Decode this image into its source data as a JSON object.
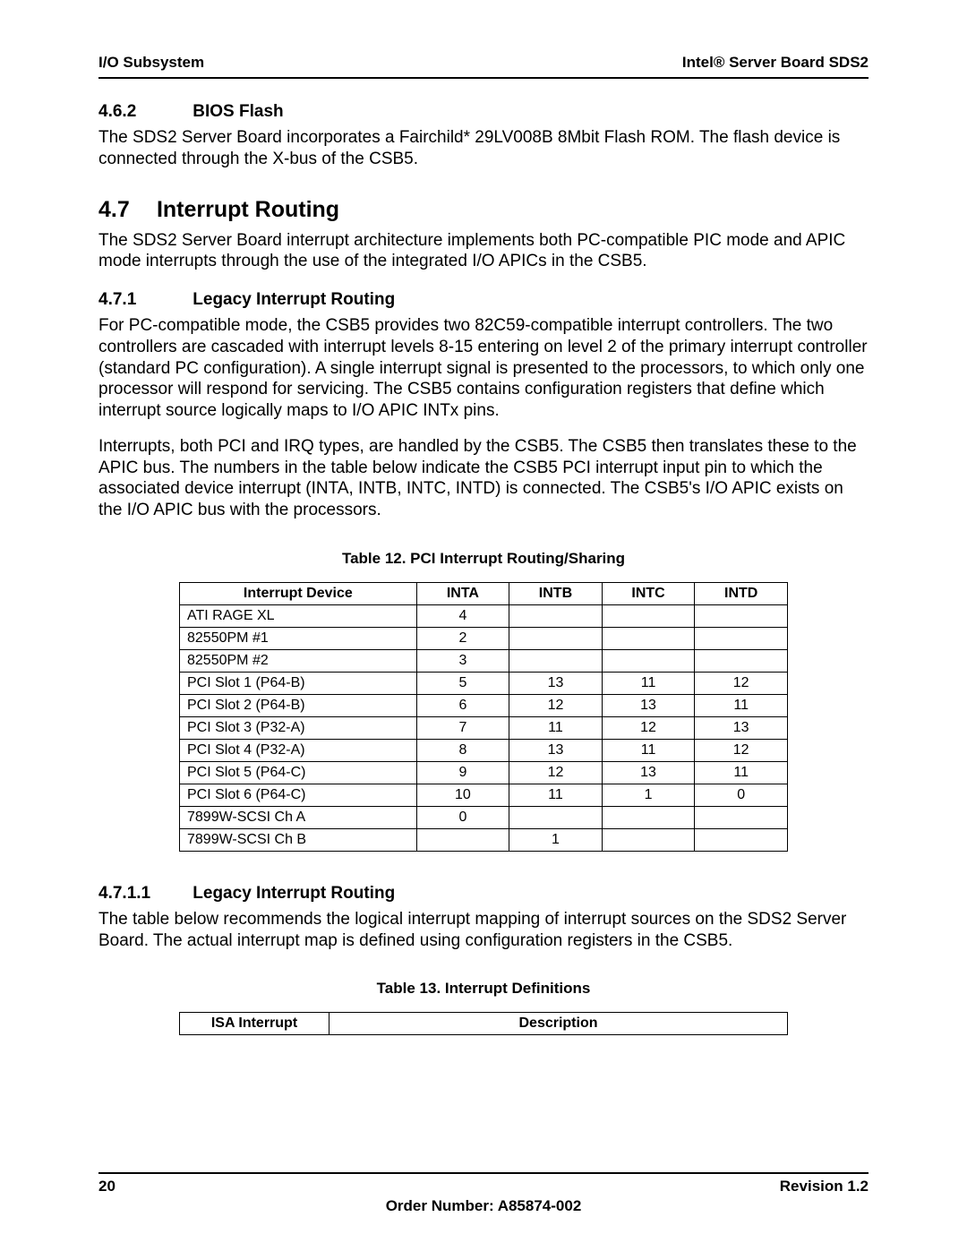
{
  "header": {
    "left": "I/O Subsystem",
    "right": "Intel® Server Board SDS2"
  },
  "sections": {
    "s462": {
      "num": "4.6.2",
      "title": "BIOS Flash",
      "p1": "The SDS2 Server Board incorporates a Fairchild* 29LV008B 8Mbit Flash ROM. The flash device is connected through the X-bus of the CSB5."
    },
    "s47": {
      "num": "4.7",
      "title": "Interrupt Routing",
      "p1": "The SDS2 Server Board interrupt architecture implements both PC-compatible PIC mode and APIC mode interrupts through the use of the integrated I/O APICs in the CSB5."
    },
    "s471": {
      "num": "4.7.1",
      "title": "Legacy Interrupt Routing",
      "p1": "For PC-compatible mode, the CSB5 provides two 82C59-compatible interrupt controllers. The two controllers are cascaded with interrupt levels 8-15 entering on level 2 of the primary interrupt controller (standard PC configuration). A single interrupt signal is presented to the processors, to which only one processor will respond for servicing. The CSB5 contains configuration registers that define which interrupt source logically maps to I/O APIC INTx pins.",
      "p2": "Interrupts, both PCI and IRQ types, are handled by the CSB5. The CSB5 then translates these to the APIC bus. The numbers in the table below indicate the CSB5 PCI interrupt input pin to which the associated device interrupt (INTA, INTB, INTC, INTD) is connected.  The CSB5's I/O APIC exists on the I/O APIC bus with the processors."
    },
    "s4711": {
      "num": "4.7.1.1",
      "title": "Legacy Interrupt Routing",
      "p1": "The table below recommends the logical interrupt mapping of interrupt sources on the SDS2 Server Board. The actual interrupt map is defined using configuration registers in the CSB5."
    }
  },
  "table12": {
    "caption": "Table 12. PCI Interrupt Routing/Sharing",
    "columns": [
      "Interrupt Device",
      "INTA",
      "INTB",
      "INTC",
      "INTD"
    ],
    "rows": [
      [
        "ATI RAGE XL",
        "4",
        "",
        "",
        ""
      ],
      [
        "82550PM #1",
        "2",
        "",
        "",
        ""
      ],
      [
        "82550PM #2",
        "3",
        "",
        "",
        ""
      ],
      [
        "PCI Slot 1 (P64-B)",
        "5",
        "13",
        "11",
        "12"
      ],
      [
        "PCI Slot 2 (P64-B)",
        "6",
        "12",
        "13",
        "11"
      ],
      [
        "PCI Slot 3 (P32-A)",
        "7",
        "11",
        "12",
        "13"
      ],
      [
        "PCI Slot 4 (P32-A)",
        "8",
        "13",
        "11",
        "12"
      ],
      [
        "PCI Slot 5 (P64-C)",
        "9",
        "12",
        "13",
        "11"
      ],
      [
        "PCI Slot 6 (P64-C)",
        "10",
        "11",
        "1",
        "0"
      ],
      [
        "7899W-SCSI Ch A",
        "0",
        "",
        "",
        ""
      ],
      [
        "7899W-SCSI Ch B",
        "",
        "1",
        "",
        ""
      ]
    ]
  },
  "table13": {
    "caption": "Table 13. Interrupt Definitions",
    "columns": [
      "ISA Interrupt",
      "Description"
    ]
  },
  "footer": {
    "page": "20",
    "revision": "Revision 1.2",
    "order": "Order Number:  A85874-002"
  }
}
